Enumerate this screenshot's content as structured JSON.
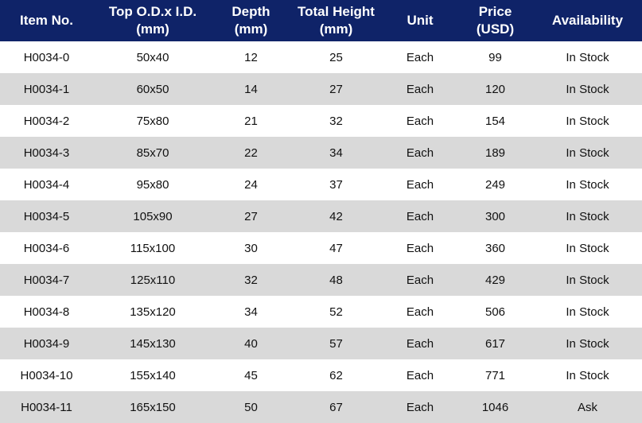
{
  "table": {
    "headers": [
      "Item No.",
      "Top O.D.x I.D.\n(mm)",
      "Depth\n(mm)",
      "Total Height\n(mm)",
      "Unit",
      "Price\n(USD)",
      "Availability"
    ],
    "rows": [
      [
        "H0034-0",
        "50x40",
        "12",
        "25",
        "Each",
        "99",
        "In Stock"
      ],
      [
        "H0034-1",
        "60x50",
        "14",
        "27",
        "Each",
        "120",
        "In Stock"
      ],
      [
        "H0034-2",
        "75x80",
        "21",
        "32",
        "Each",
        "154",
        "In Stock"
      ],
      [
        "H0034-3",
        "85x70",
        "22",
        "34",
        "Each",
        "189",
        "In Stock"
      ],
      [
        "H0034-4",
        "95x80",
        "24",
        "37",
        "Each",
        "249",
        "In Stock"
      ],
      [
        "H0034-5",
        "105x90",
        "27",
        "42",
        "Each",
        "300",
        "In Stock"
      ],
      [
        "H0034-6",
        "115x100",
        "30",
        "47",
        "Each",
        "360",
        "In Stock"
      ],
      [
        "H0034-7",
        "125x110",
        "32",
        "48",
        "Each",
        "429",
        "In Stock"
      ],
      [
        "H0034-8",
        "135x120",
        "34",
        "52",
        "Each",
        "506",
        "In Stock"
      ],
      [
        "H0034-9",
        "145x130",
        "40",
        "57",
        "Each",
        "617",
        "In Stock"
      ],
      [
        "H0034-10",
        "155x140",
        "45",
        "62",
        "Each",
        "771",
        "In Stock"
      ],
      [
        "H0034-11",
        "165x150",
        "50",
        "67",
        "Each",
        "1046",
        "Ask"
      ]
    ]
  },
  "colors": {
    "header_background": "#0f2368",
    "header_text": "#ffffff",
    "shaded_row": "#d9d9d9",
    "plain_row": "#ffffff"
  }
}
